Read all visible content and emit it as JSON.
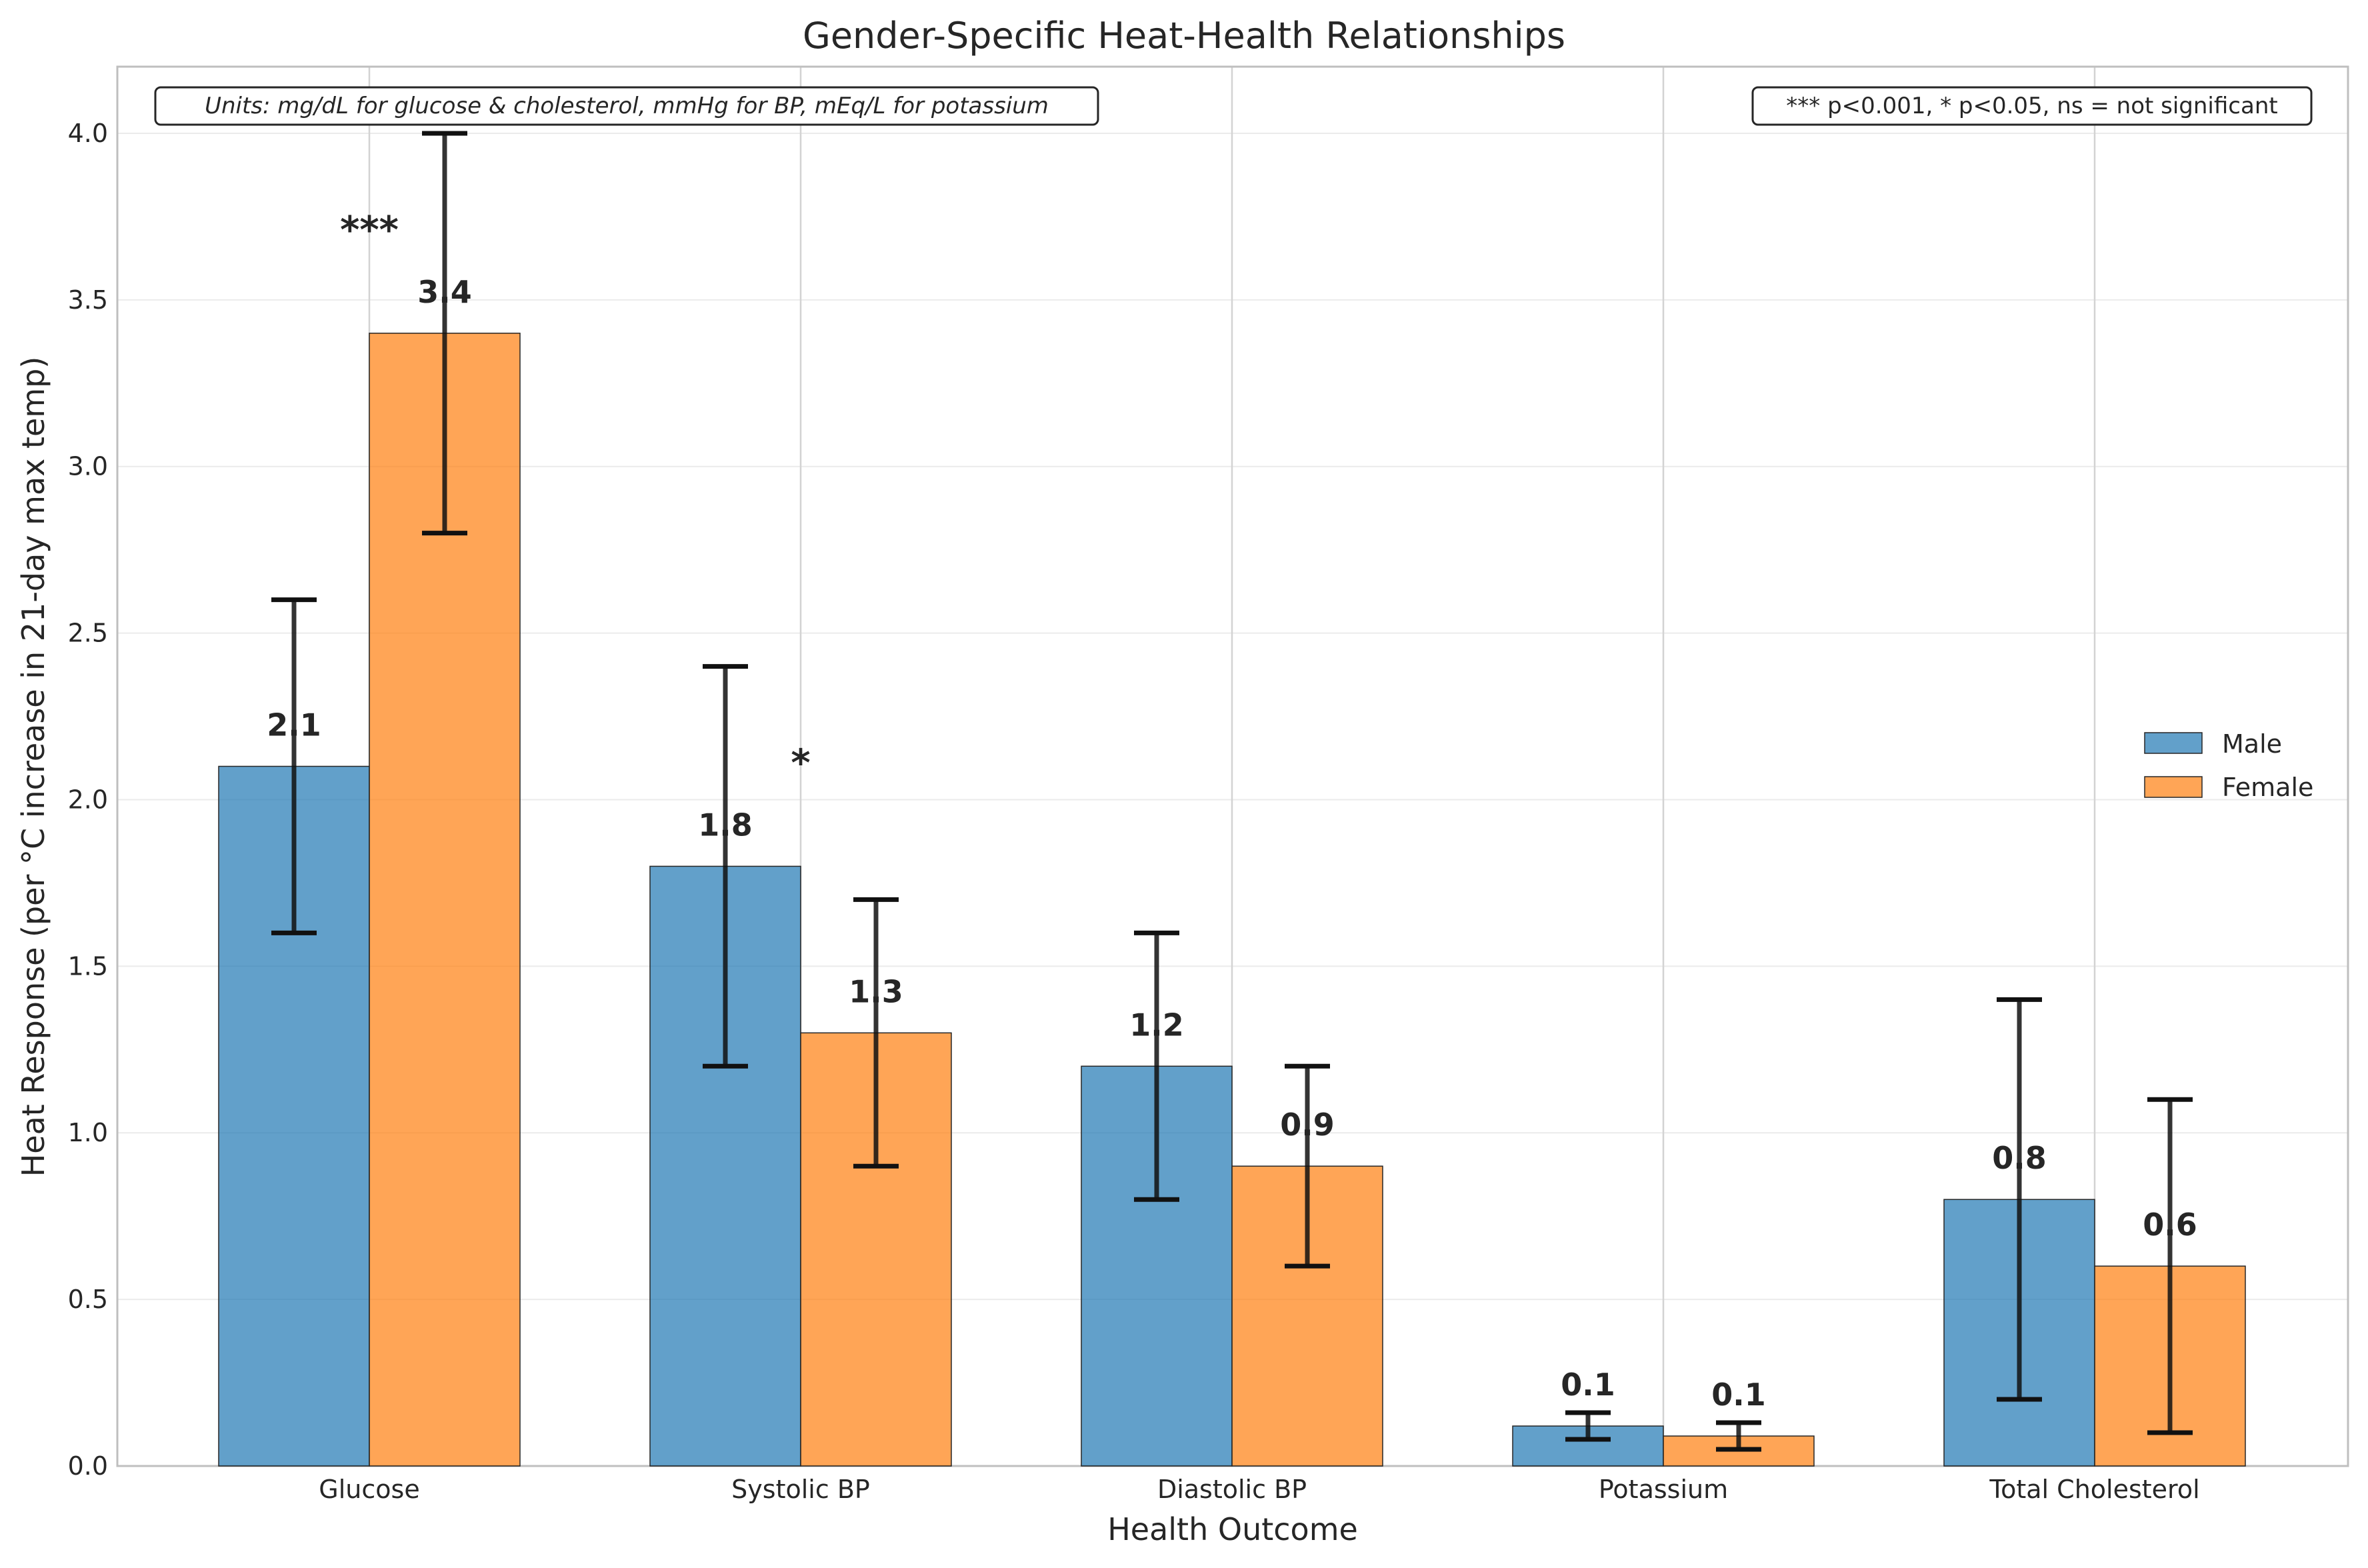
{
  "chart_data": {
    "type": "bar",
    "title": "Gender-Specific Heat-Health Relationships",
    "xlabel": "Health Outcome",
    "ylabel": "Heat Response (per °C increase in 21-day max temp)",
    "categories": [
      "Glucose",
      "Systolic BP",
      "Diastolic BP",
      "Potassium",
      "Total Cholesterol"
    ],
    "series": [
      {
        "name": "Male",
        "color": "#1f77b4",
        "values": [
          2.1,
          1.8,
          1.2,
          0.12,
          0.8
        ],
        "value_labels": [
          "2.1",
          "1.8",
          "1.2",
          "0.1",
          "0.8"
        ],
        "err_low": [
          1.6,
          1.2,
          0.8,
          0.08,
          0.2
        ],
        "err_high": [
          2.6,
          2.4,
          1.6,
          0.16,
          1.4
        ]
      },
      {
        "name": "Female",
        "color": "#ff7f0e",
        "values": [
          3.4,
          1.3,
          0.9,
          0.09,
          0.6
        ],
        "value_labels": [
          "3.4",
          "1.3",
          "0.9",
          "0.1",
          "0.6"
        ],
        "err_low": [
          2.8,
          0.9,
          0.6,
          0.05,
          0.1
        ],
        "err_high": [
          4.0,
          1.7,
          1.2,
          0.13,
          1.1
        ]
      }
    ],
    "significance": [
      {
        "category_index": 0,
        "label": "***",
        "y": 3.72
      },
      {
        "category_index": 1,
        "label": "*",
        "y": 2.12
      }
    ],
    "ylim": [
      0,
      4.2
    ],
    "yticks": [
      0.0,
      0.5,
      1.0,
      1.5,
      2.0,
      2.5,
      3.0,
      3.5,
      4.0
    ],
    "ytick_labels": [
      "0.0",
      "0.5",
      "1.0",
      "1.5",
      "2.0",
      "2.5",
      "3.0",
      "3.5",
      "4.0"
    ],
    "grid": true,
    "legend_position": "center-right",
    "annotations": {
      "units_note": "Units: mg/dL for glucose & cholesterol, mmHg for BP, mEq/L for potassium",
      "significance_note": "*** p<0.001, * p<0.05, ns = not significant"
    }
  }
}
